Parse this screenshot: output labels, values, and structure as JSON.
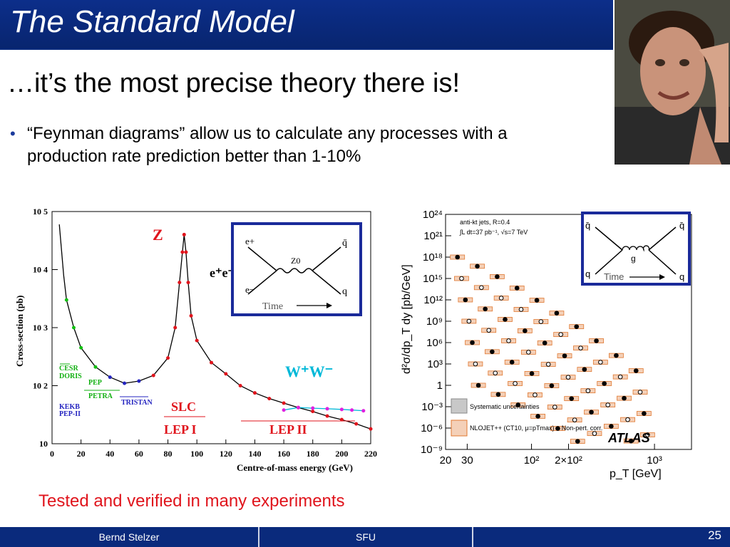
{
  "slide": {
    "title": "The Standard Model",
    "subtitle": "…it’s the most precise theory there is!",
    "bullet": "“Feynman diagrams” allow us to calculate any processes with a production rate prediction better than 1-10%",
    "tested": "Tested and verified in many experiments",
    "page_number": "25",
    "colors": {
      "title_bar": "#0a2a7c",
      "accent_red": "#e0141c",
      "bullet": "#1b3a9c"
    }
  },
  "footer": {
    "author": "Bernd Stelzer",
    "institution": "SFU"
  },
  "photo": {
    "icon": "portrait-photo"
  },
  "chart_data": [
    {
      "type": "line",
      "ylabel": "Cross-section (pb)",
      "xlabel": "Centre-of-mass energy (GeV)",
      "xlim": [
        0,
        220
      ],
      "ylim": [
        10,
        100000
      ],
      "yscale": "log",
      "x_ticks": [
        "0",
        "20",
        "40",
        "60",
        "80",
        "100",
        "120",
        "140",
        "160",
        "180",
        "200",
        "220"
      ],
      "y_ticks": [
        "10",
        "10 2",
        "10 3",
        "10 4",
        "10 5"
      ],
      "annotations": {
        "z_peak": "Z",
        "process": "e⁺e⁻",
        "ww": "W⁺W⁻",
        "slc": "SLC",
        "lep1": "LEP I",
        "lep2": "LEP II",
        "cesr": "CESR",
        "doris": "DORIS",
        "pep": "PEP",
        "petra": "PETRA",
        "tristan": "TRISTAN",
        "kekb": "KEKB",
        "pep2": "PEP-II"
      },
      "series": [
        {
          "x": [
            5,
            8,
            10,
            15,
            20,
            30,
            40,
            50,
            60,
            70,
            80,
            85,
            88,
            90,
            91.2,
            92.5,
            94,
            96,
            100,
            110,
            120,
            130,
            140,
            150,
            160,
            170,
            180,
            190,
            200,
            210,
            220
          ],
          "y": [
            60000,
            8000,
            3000,
            1000,
            450,
            210,
            140,
            110,
            120,
            150,
            300,
            1000,
            6000,
            20000,
            40000,
            20000,
            6000,
            1600,
            600,
            250,
            160,
            100,
            75,
            60,
            50,
            42,
            36,
            30,
            26,
            22,
            18
          ]
        },
        {
          "x": [
            160,
            170,
            180,
            190,
            200,
            207,
            215
          ],
          "y": [
            38,
            42,
            41,
            40,
            39,
            38,
            37
          ]
        }
      ],
      "inset": {
        "label_time": "Time",
        "e_plus": "e+",
        "e_minus": "e−",
        "boson": "Z0",
        "q": "q",
        "qbar": "q̄"
      }
    },
    {
      "type": "scatter",
      "ylabel": "d²σ/dp_T dy [pb/GeV]",
      "xlabel": "p_T [GeV]",
      "xscale": "log",
      "yscale": "log",
      "xlim": [
        20,
        2000
      ],
      "ylim": [
        1e-09,
        1e+24
      ],
      "x_ticks": [
        "20",
        "30",
        "10²",
        "2×10²",
        "10³"
      ],
      "y_ticks": [
        "10²⁴",
        "10²¹",
        "10¹⁸",
        "10¹⁵",
        "10¹²",
        "10⁹",
        "10⁶",
        "10³",
        "1",
        "10⁻³",
        "10⁻⁶",
        "10⁻⁹"
      ],
      "info": {
        "line1": "anti-kt jets, R=0.4",
        "line2": "∫L dt=37 pb⁻¹, √s=7 TeV"
      },
      "legend": [
        {
          "label": "Systematic uncertainties",
          "color": "#c8c8c8"
        },
        {
          "label": "NLOJET++ (CT10, μ=pTmax) × Non-pert. corr.",
          "color": "#e8a070"
        }
      ],
      "brand": "ATLAS",
      "series_count": 7,
      "inset": {
        "label_time": "Time",
        "q": "q",
        "qbar": "q̄",
        "gluon": "g"
      }
    }
  ]
}
